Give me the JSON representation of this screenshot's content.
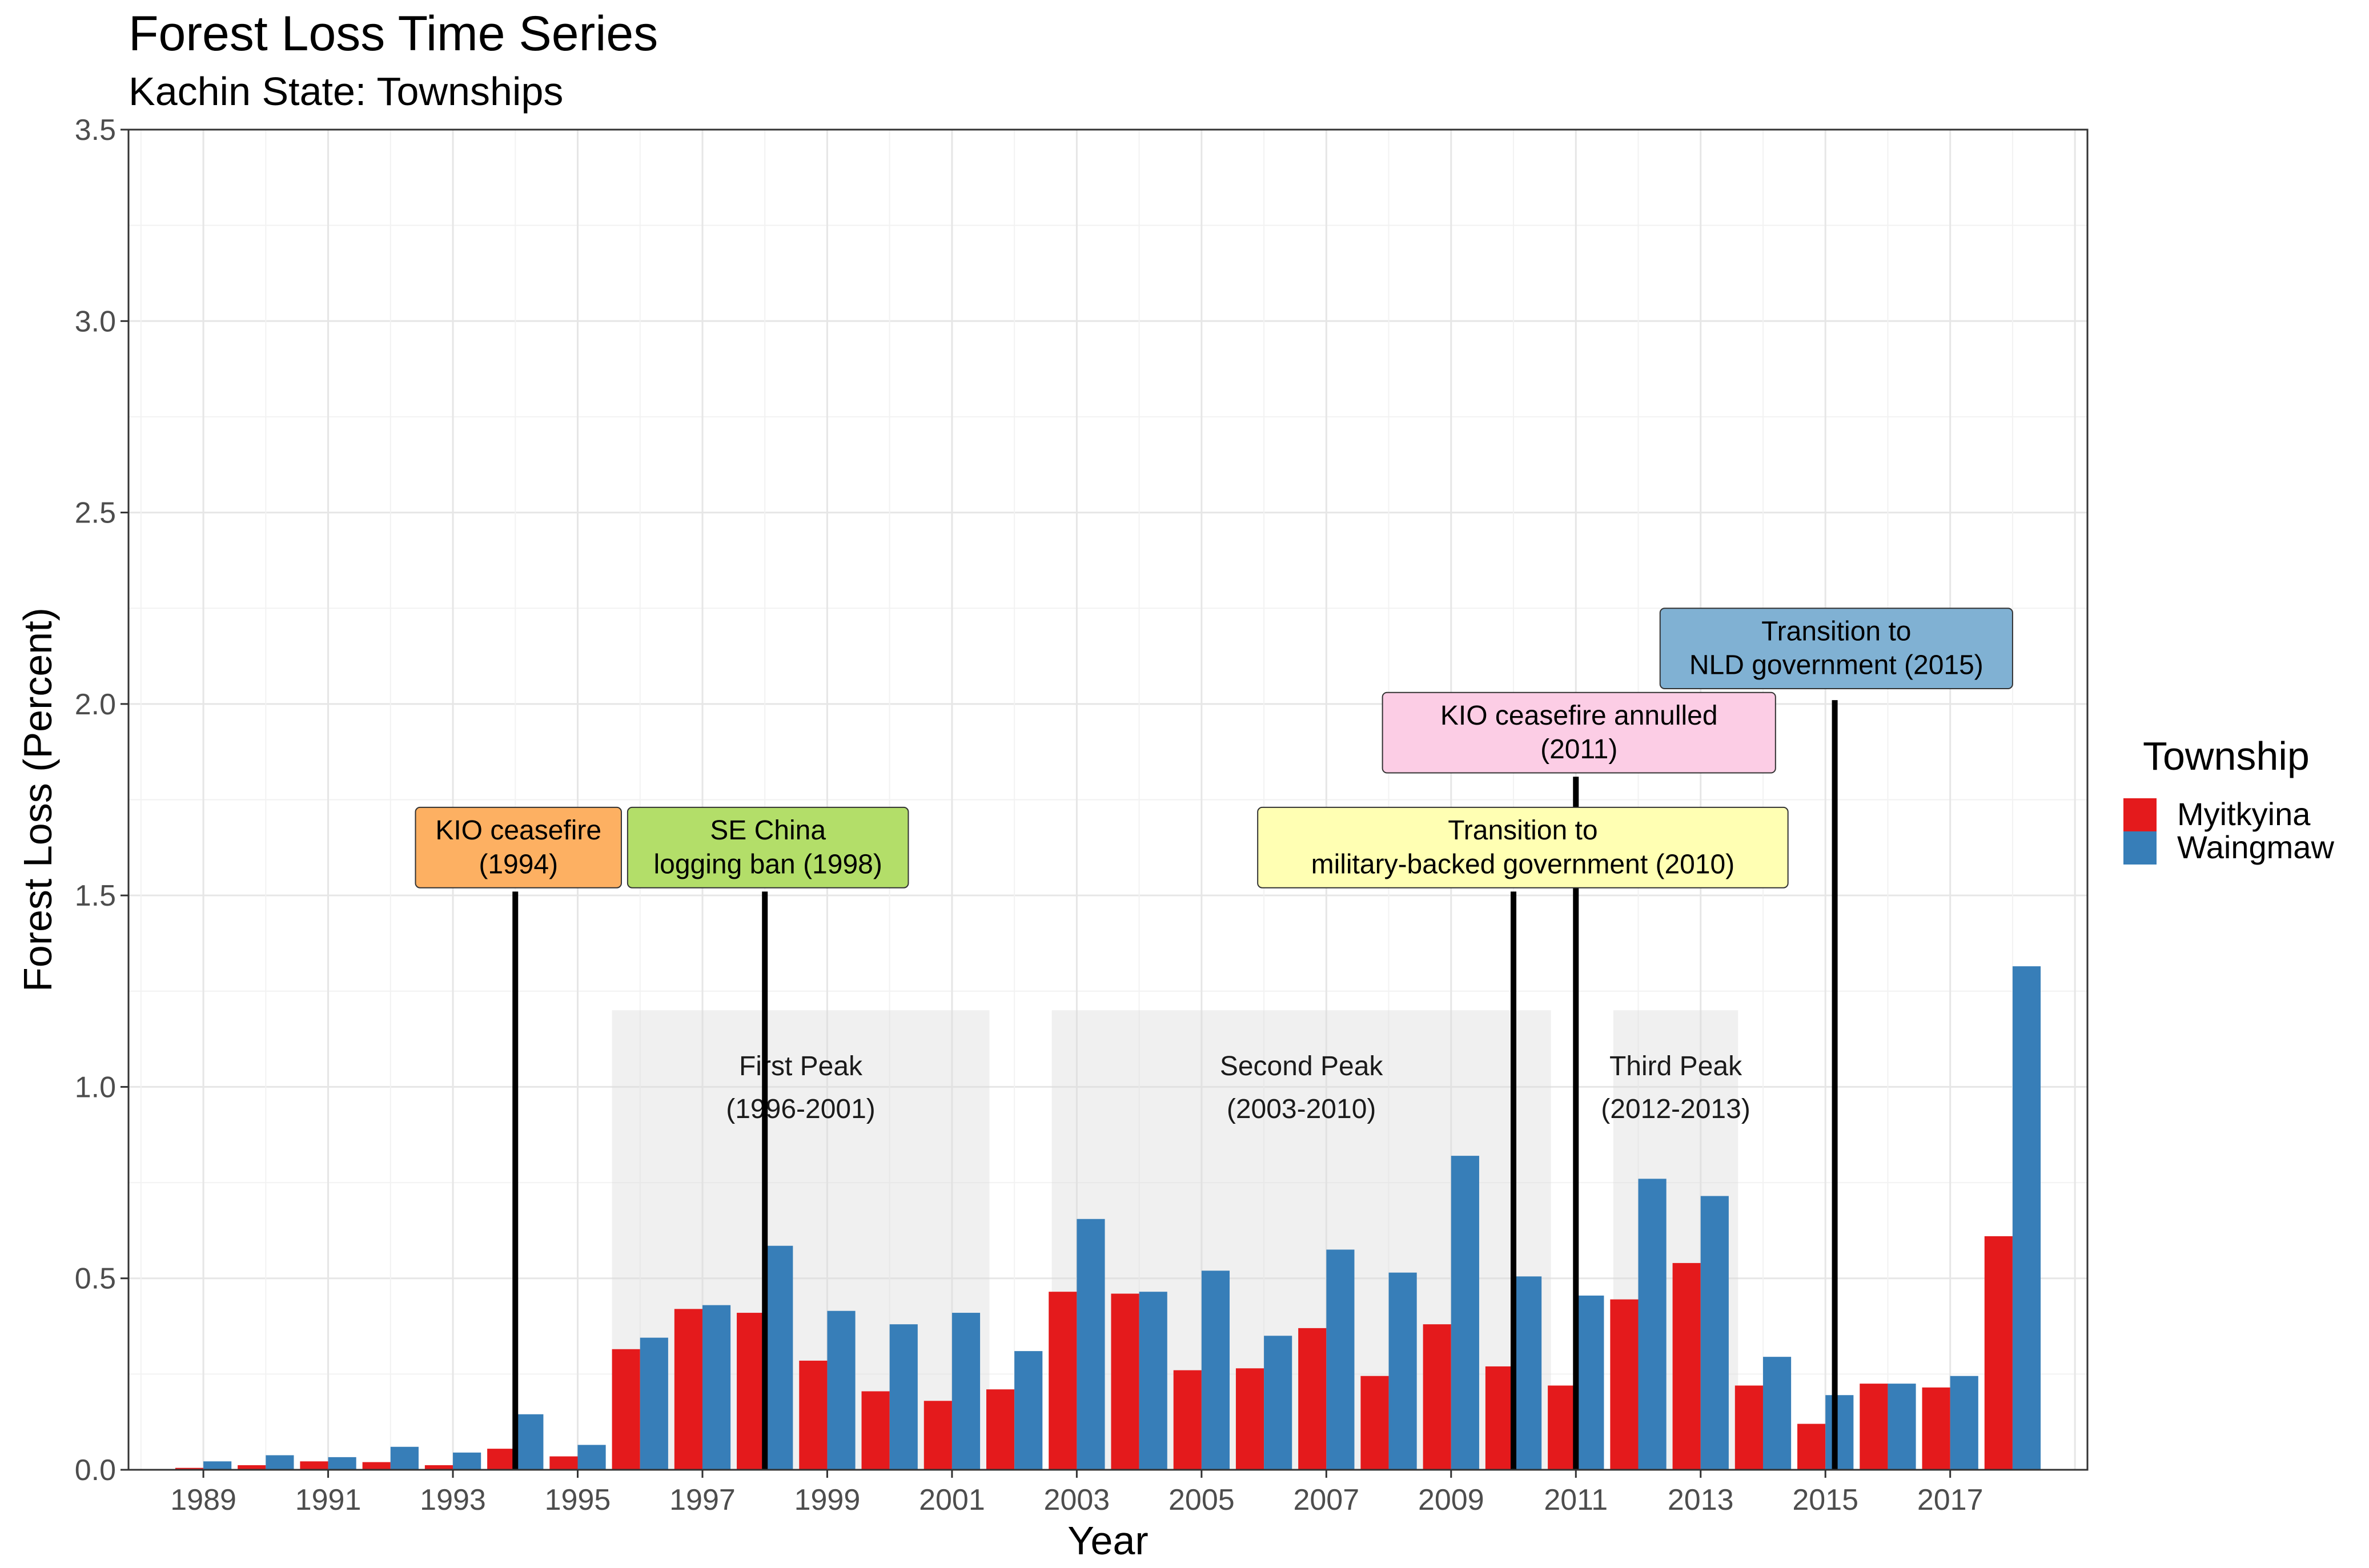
{
  "chart_data": {
    "type": "bar",
    "title": "Forest Loss Time Series",
    "subtitle": "Kachin State: Townships",
    "xlabel": "Year",
    "ylabel": "Forest Loss (Percent)",
    "ylim": [
      0,
      3.5
    ],
    "y_ticks": [
      0.0,
      0.5,
      1.0,
      1.5,
      2.0,
      2.5,
      3.0,
      3.5
    ],
    "y_tick_labels": [
      "0.0",
      "0.5",
      "1.0",
      "1.5",
      "2.0",
      "2.5",
      "3.0",
      "3.5"
    ],
    "x_range": [
      1987.8,
      2019.2
    ],
    "x_tick_labels": [
      "1989",
      "1991",
      "1993",
      "1995",
      "1997",
      "1999",
      "2001",
      "2003",
      "2005",
      "2007",
      "2009",
      "2011",
      "2013",
      "2015",
      "2017"
    ],
    "x_ticks": [
      1989,
      1991,
      1993,
      1995,
      1997,
      1999,
      2001,
      2003,
      2005,
      2007,
      2009,
      2011,
      2013,
      2015,
      2017
    ],
    "grid": true,
    "legend": {
      "title": "Township",
      "position": "right"
    },
    "years": [
      1989,
      1990,
      1991,
      1992,
      1993,
      1994,
      1995,
      1996,
      1997,
      1998,
      1999,
      2000,
      2001,
      2002,
      2003,
      2004,
      2005,
      2006,
      2007,
      2008,
      2009,
      2010,
      2011,
      2012,
      2013,
      2014,
      2015,
      2016,
      2017,
      2018
    ],
    "series": [
      {
        "name": "Myitkyina",
        "color": "#e41a1c",
        "values": [
          0.005,
          0.012,
          0.022,
          0.02,
          0.012,
          0.055,
          0.035,
          0.315,
          0.42,
          0.41,
          0.285,
          0.205,
          0.18,
          0.21,
          0.465,
          0.46,
          0.26,
          0.265,
          0.37,
          0.245,
          0.38,
          0.27,
          0.22,
          0.445,
          0.54,
          0.22,
          0.12,
          0.225,
          0.215,
          0.61
        ]
      },
      {
        "name": "Waingmaw",
        "color": "#377eb8",
        "values": [
          0.022,
          0.038,
          0.033,
          0.06,
          0.045,
          0.145,
          0.065,
          0.345,
          0.43,
          0.585,
          0.415,
          0.38,
          0.41,
          0.31,
          0.655,
          0.465,
          0.52,
          0.35,
          0.575,
          0.515,
          0.82,
          0.505,
          0.455,
          0.76,
          0.715,
          0.295,
          0.195,
          0.225,
          0.245,
          1.315
        ]
      }
    ],
    "peaks": [
      {
        "label": "First Peak",
        "range": "(1996-2001)",
        "x0": 1995.55,
        "x1": 2001.6,
        "ymax": 1.2
      },
      {
        "label": "Second Peak",
        "range": "(2003-2010)",
        "x0": 2002.6,
        "x1": 2010.6,
        "ymax": 1.2
      },
      {
        "label": "Third Peak",
        "range": "(2012-2013)",
        "x0": 2011.6,
        "x1": 2013.6,
        "ymax": 1.2
      }
    ],
    "events": [
      {
        "line1": "KIO ceasefire",
        "line2": "(1994)",
        "x": 1994,
        "line_top": 1.51,
        "box_x0": 1992.4,
        "box_x1": 1995.7,
        "box_y0": 1.52,
        "box_y1": 1.73,
        "color": "#fdb062"
      },
      {
        "line1": "SE China",
        "line2": "logging ban (1998)",
        "x": 1998,
        "line_top": 1.51,
        "box_x0": 1995.8,
        "box_x1": 2000.3,
        "box_y0": 1.52,
        "box_y1": 1.73,
        "color": "#b3de69"
      },
      {
        "line1": "Transition to",
        "line2": "military-backed government (2010)",
        "x": 2010,
        "line_top": 1.51,
        "box_x0": 2005.9,
        "box_x1": 2014.4,
        "box_y0": 1.52,
        "box_y1": 1.73,
        "color": "#ffffb3"
      },
      {
        "line1": "KIO ceasefire annulled",
        "line2": "(2011)",
        "x": 2011,
        "line_top": 1.81,
        "box_x0": 2007.9,
        "box_x1": 2014.2,
        "box_y0": 1.82,
        "box_y1": 2.03,
        "color": "#fccde5"
      },
      {
        "line1": "Transition to",
        "line2": "NLD government (2015)",
        "x": 2015.15,
        "line_top": 2.01,
        "box_x0": 2012.35,
        "box_x1": 2018.0,
        "box_y0": 2.04,
        "box_y1": 2.25,
        "color": "#80b1d3"
      }
    ]
  }
}
